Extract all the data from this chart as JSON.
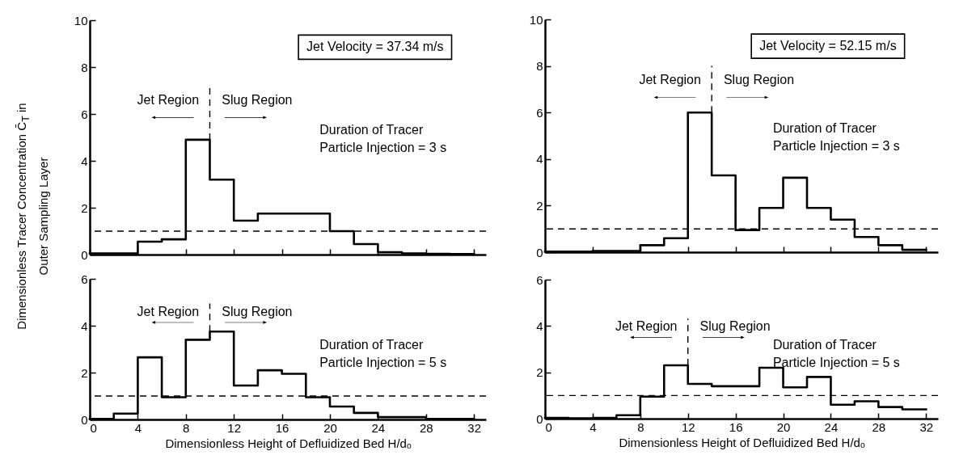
{
  "chart_data": [
    {
      "type": "histogram",
      "color": "#000000",
      "bins": [
        0,
        2,
        4,
        6,
        8,
        10,
        12,
        14,
        16,
        18,
        20,
        22,
        24,
        26,
        28,
        30,
        32
      ],
      "values": [
        0.05,
        0.05,
        0.55,
        0.65,
        4.9,
        3.2,
        1.45,
        1.75,
        1.75,
        1.75,
        1.0,
        0.45,
        0.1,
        0.05,
        0.03,
        0.02
      ],
      "xlim": [
        0,
        33
      ],
      "xticks": [
        0,
        4,
        8,
        12,
        16,
        20,
        24,
        28,
        32
      ],
      "ylim": [
        0,
        10
      ],
      "yticks": [
        0,
        2,
        4,
        6,
        8,
        10
      ],
      "tick_labels": "y",
      "ylabel": "Dimensionless Tracer Concentration C̄$_{T}$ in Outer Sampling Layer",
      "ref_lines": [
        {
          "axis": "y",
          "value": 1,
          "line_style": "dashed"
        },
        {
          "axis": "x",
          "value": 10,
          "line_style": "dashed"
        }
      ],
      "annotations": [
        "Jet Velocity = 37.34 m/s",
        "Jet Region",
        "Slug Region",
        "Duration of Tracer\nParticle Injection = 3 s"
      ]
    },
    {
      "type": "histogram",
      "color": "#000000",
      "bins": [
        0,
        2,
        4,
        6,
        8,
        10,
        12,
        14,
        16,
        18,
        20,
        22,
        24,
        26,
        28,
        30,
        32
      ],
      "values": [
        0.02,
        0.02,
        0.05,
        0.05,
        0.3,
        0.6,
        6.0,
        3.3,
        0.95,
        1.9,
        3.2,
        1.9,
        1.4,
        0.65,
        0.3,
        0.1
      ],
      "xlim": [
        0,
        33
      ],
      "xticks": [
        0,
        4,
        8,
        12,
        16,
        20,
        24,
        28,
        32
      ],
      "ylim": [
        0,
        10
      ],
      "yticks": [
        0,
        2,
        4,
        6,
        8,
        10
      ],
      "tick_labels": "y",
      "ref_lines": [
        {
          "axis": "y",
          "value": 1,
          "line_style": "dashed"
        },
        {
          "axis": "x",
          "value": 14,
          "line_style": "dashed"
        }
      ],
      "annotations": [
        "Jet Velocity = 52.15 m/s",
        "Jet Region",
        "Slug Region",
        "Duration of Tracer\nParticle Injection = 3 s"
      ]
    },
    {
      "type": "histogram",
      "color": "#000000",
      "bins": [
        0,
        2,
        4,
        6,
        8,
        10,
        12,
        14,
        16,
        18,
        20,
        22,
        24,
        26,
        28,
        30,
        32
      ],
      "values": [
        0.02,
        0.25,
        2.65,
        0.95,
        3.4,
        3.75,
        1.45,
        2.1,
        1.95,
        0.95,
        0.55,
        0.28,
        0.1,
        0.1,
        0.02,
        0.02
      ],
      "xlim": [
        0,
        33
      ],
      "xticks": [
        0,
        4,
        8,
        12,
        16,
        20,
        24,
        28,
        32
      ],
      "ylim": [
        0,
        6
      ],
      "yticks": [
        0,
        2,
        4,
        6
      ],
      "xlabel": "Dimensionless Height of Defluidized Bed H/dₒ",
      "ref_lines": [
        {
          "axis": "y",
          "value": 1,
          "line_style": "dashed"
        },
        {
          "axis": "x",
          "value": 10,
          "line_style": "dashed"
        }
      ],
      "annotations": [
        "Jet Region",
        "Slug Region",
        "Duration of Tracer\nParticle Injection = 5 s"
      ]
    },
    {
      "type": "histogram",
      "color": "#000000",
      "bins": [
        0,
        2,
        4,
        6,
        8,
        10,
        12,
        14,
        16,
        18,
        20,
        22,
        24,
        26,
        28,
        30,
        32
      ],
      "values": [
        0.03,
        0.02,
        0.03,
        0.15,
        0.95,
        2.3,
        1.5,
        1.4,
        1.4,
        2.2,
        1.35,
        1.8,
        0.6,
        0.75,
        0.5,
        0.4
      ],
      "xlim": [
        0,
        33
      ],
      "xticks": [
        0,
        4,
        8,
        12,
        16,
        20,
        24,
        28,
        32
      ],
      "ylim": [
        0,
        6
      ],
      "yticks": [
        0,
        2,
        4,
        6
      ],
      "xlabel": "Dimensionless Height of Defluidized Bed H/dₒ",
      "ref_lines": [
        {
          "axis": "y",
          "value": 1,
          "line_style": "dashed"
        },
        {
          "axis": "x",
          "value": 12,
          "line_style": "dashed"
        }
      ],
      "annotations": [
        "Jet Region",
        "Slug Region",
        "Duration of Tracer\nParticle Injection = 5 s"
      ]
    }
  ]
}
